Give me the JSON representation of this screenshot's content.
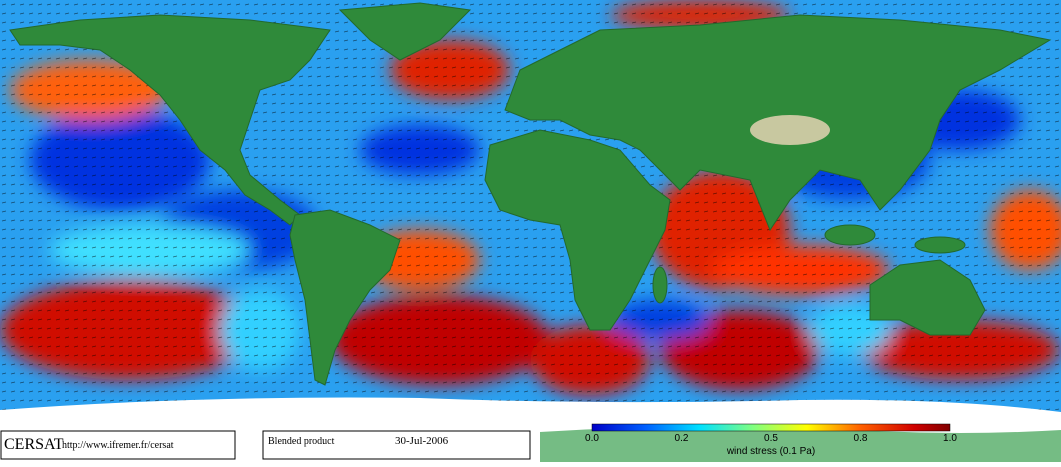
{
  "credit": "CERSAT",
  "url": "http://www.ifremer.fr/cersat",
  "product": "Blended product",
  "date": "30-Jul-2006",
  "colorbar": {
    "ticks": [
      "0.0",
      "0.2",
      "0.5",
      "0.8",
      "1.0"
    ],
    "label": "wind stress (0.1 Pa)"
  }
}
